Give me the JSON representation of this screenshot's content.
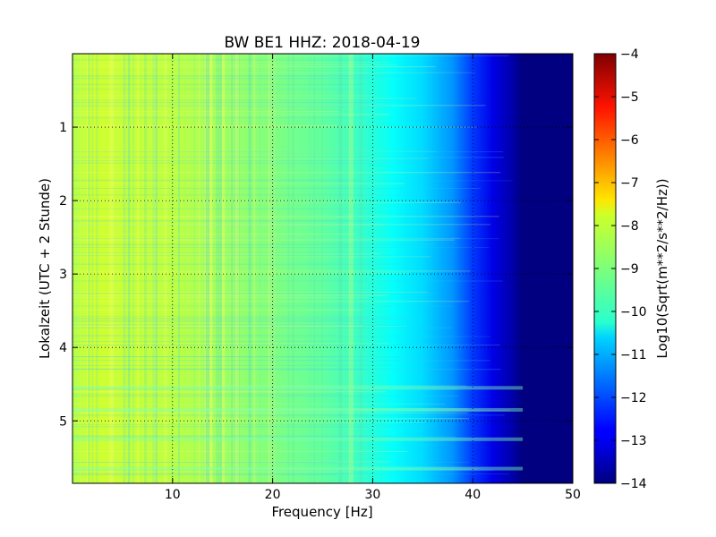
{
  "chart_data": {
    "type": "heatmap",
    "title": "BW BE1 HHZ: 2018-04-19",
    "xlabel": "Frequency [Hz]",
    "ylabel": "Lokalzeit (UTC + 2 Stunde)",
    "xlim": [
      0,
      50
    ],
    "ylim": [
      5.85,
      0
    ],
    "xticks": [
      10,
      20,
      30,
      40,
      50
    ],
    "yticks": [
      1,
      2,
      3,
      4,
      5
    ],
    "grid": true,
    "colormap": "jet",
    "colorbar": {
      "label": "Log10(Sqrt(m**2/s**2/Hz))",
      "range": [
        -14,
        -4
      ],
      "ticks": [
        -4,
        -5,
        -6,
        -7,
        -8,
        -9,
        -10,
        -11,
        -12,
        -13,
        -14
      ]
    },
    "frequency_profile_hz": [
      0,
      2,
      5,
      10,
      15,
      20,
      25,
      28,
      30,
      32,
      35,
      38,
      40,
      42,
      44,
      45,
      50
    ],
    "level_profile": [
      -8.5,
      -8.2,
      -8.3,
      -8.4,
      -8.7,
      -9.0,
      -9.3,
      -9.6,
      -9.9,
      -10.2,
      -10.6,
      -11.3,
      -12.2,
      -13.0,
      -13.6,
      -14,
      -14
    ],
    "notable_bands_hours": [
      4.55,
      4.85,
      5.25,
      5.65
    ]
  }
}
